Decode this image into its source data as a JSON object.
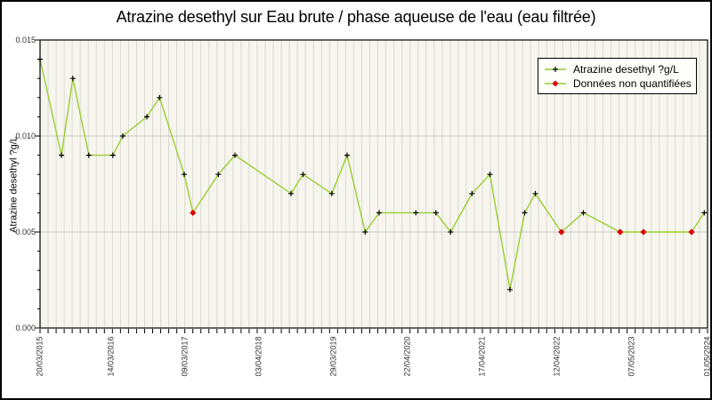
{
  "style": {
    "series_green": "#9acd32",
    "non_quantified_red": "#e00000",
    "marker_black": "#000000",
    "plot_bg": "#f6f6ee",
    "grid_vertical": "#d9d9d1",
    "grid_horizontal": "#c9c9c9",
    "frame": "#000000"
  },
  "chart_data": {
    "type": "line",
    "title": "Atrazine desethyl sur Eau brute / phase aqueuse de l'eau (eau filtrée)",
    "ylabel": "Atrazine desethyl ?g/L",
    "xlabel": "",
    "ylim": [
      0,
      0.015
    ],
    "grid": {
      "vertical_intervals": 83,
      "horizontal_values": [
        0.005,
        0.01
      ],
      "y_minor_tick_step": 0.001,
      "y_major_tick_step": 0.005
    },
    "y_ticks": [
      {
        "value": 0.0,
        "label": "0.000"
      },
      {
        "value": 0.005,
        "label": "0.005"
      },
      {
        "value": 0.01,
        "label": "0.010"
      },
      {
        "value": 0.015,
        "label": "0.015"
      }
    ],
    "x_ticks": [
      {
        "label": "20/03/2015",
        "pos": 0.0
      },
      {
        "label": "14/03/2016",
        "pos": 0.1071
      },
      {
        "label": "09/03/2017",
        "pos": 0.2169
      },
      {
        "label": "03/04/2018",
        "pos": 0.3284
      },
      {
        "label": "29/03/2019",
        "pos": 0.4396
      },
      {
        "label": "22/04/2020",
        "pos": 0.5507
      },
      {
        "label": "17/04/2021",
        "pos": 0.6627
      },
      {
        "label": "12/04/2022",
        "pos": 0.7747
      },
      {
        "label": "07/05/2023",
        "pos": 0.8871
      },
      {
        "label": "01/05/2024",
        "pos": 1.0
      }
    ],
    "legend": {
      "position": "top-right",
      "entries": [
        {
          "label": "Atrazine desethyl ?g/L",
          "marker": "plus",
          "line_color": "#9acd32",
          "marker_color": "#000000"
        },
        {
          "label": "Données non quantifiées",
          "marker": "diamond",
          "line_color": "#9acd32",
          "marker_color": "#e00000"
        }
      ]
    },
    "series": [
      {
        "name": "Atrazine desethyl ?g/L",
        "color": "#9acd32",
        "x_unit": "fraction-of-x-axis",
        "points": [
          {
            "x_frac": 0.0,
            "y": 0.014,
            "quantified": true
          },
          {
            "x_frac": 0.032,
            "y": 0.009,
            "quantified": true
          },
          {
            "x_frac": 0.049,
            "y": 0.013,
            "quantified": true
          },
          {
            "x_frac": 0.073,
            "y": 0.009,
            "quantified": true
          },
          {
            "x_frac": 0.109,
            "y": 0.009,
            "quantified": true
          },
          {
            "x_frac": 0.124,
            "y": 0.01,
            "quantified": true
          },
          {
            "x_frac": 0.16,
            "y": 0.011,
            "quantified": true
          },
          {
            "x_frac": 0.179,
            "y": 0.012,
            "quantified": true
          },
          {
            "x_frac": 0.216,
            "y": 0.008,
            "quantified": true
          },
          {
            "x_frac": 0.229,
            "y": 0.006,
            "quantified": false
          },
          {
            "x_frac": 0.267,
            "y": 0.008,
            "quantified": true
          },
          {
            "x_frac": 0.292,
            "y": 0.009,
            "quantified": true
          },
          {
            "x_frac": 0.376,
            "y": 0.007,
            "quantified": true
          },
          {
            "x_frac": 0.394,
            "y": 0.008,
            "quantified": true
          },
          {
            "x_frac": 0.437,
            "y": 0.007,
            "quantified": true
          },
          {
            "x_frac": 0.46,
            "y": 0.009,
            "quantified": true
          },
          {
            "x_frac": 0.487,
            "y": 0.005,
            "quantified": true
          },
          {
            "x_frac": 0.508,
            "y": 0.006,
            "quantified": true
          },
          {
            "x_frac": 0.563,
            "y": 0.006,
            "quantified": true
          },
          {
            "x_frac": 0.593,
            "y": 0.006,
            "quantified": true
          },
          {
            "x_frac": 0.615,
            "y": 0.005,
            "quantified": true
          },
          {
            "x_frac": 0.647,
            "y": 0.007,
            "quantified": true
          },
          {
            "x_frac": 0.674,
            "y": 0.008,
            "quantified": true
          },
          {
            "x_frac": 0.704,
            "y": 0.002,
            "quantified": true
          },
          {
            "x_frac": 0.726,
            "y": 0.006,
            "quantified": true
          },
          {
            "x_frac": 0.742,
            "y": 0.007,
            "quantified": true
          },
          {
            "x_frac": 0.781,
            "y": 0.005,
            "quantified": false
          },
          {
            "x_frac": 0.814,
            "y": 0.006,
            "quantified": true
          },
          {
            "x_frac": 0.869,
            "y": 0.005,
            "quantified": false
          },
          {
            "x_frac": 0.904,
            "y": 0.005,
            "quantified": false
          },
          {
            "x_frac": 0.976,
            "y": 0.005,
            "quantified": false
          },
          {
            "x_frac": 0.995,
            "y": 0.006,
            "quantified": true
          }
        ]
      }
    ]
  }
}
